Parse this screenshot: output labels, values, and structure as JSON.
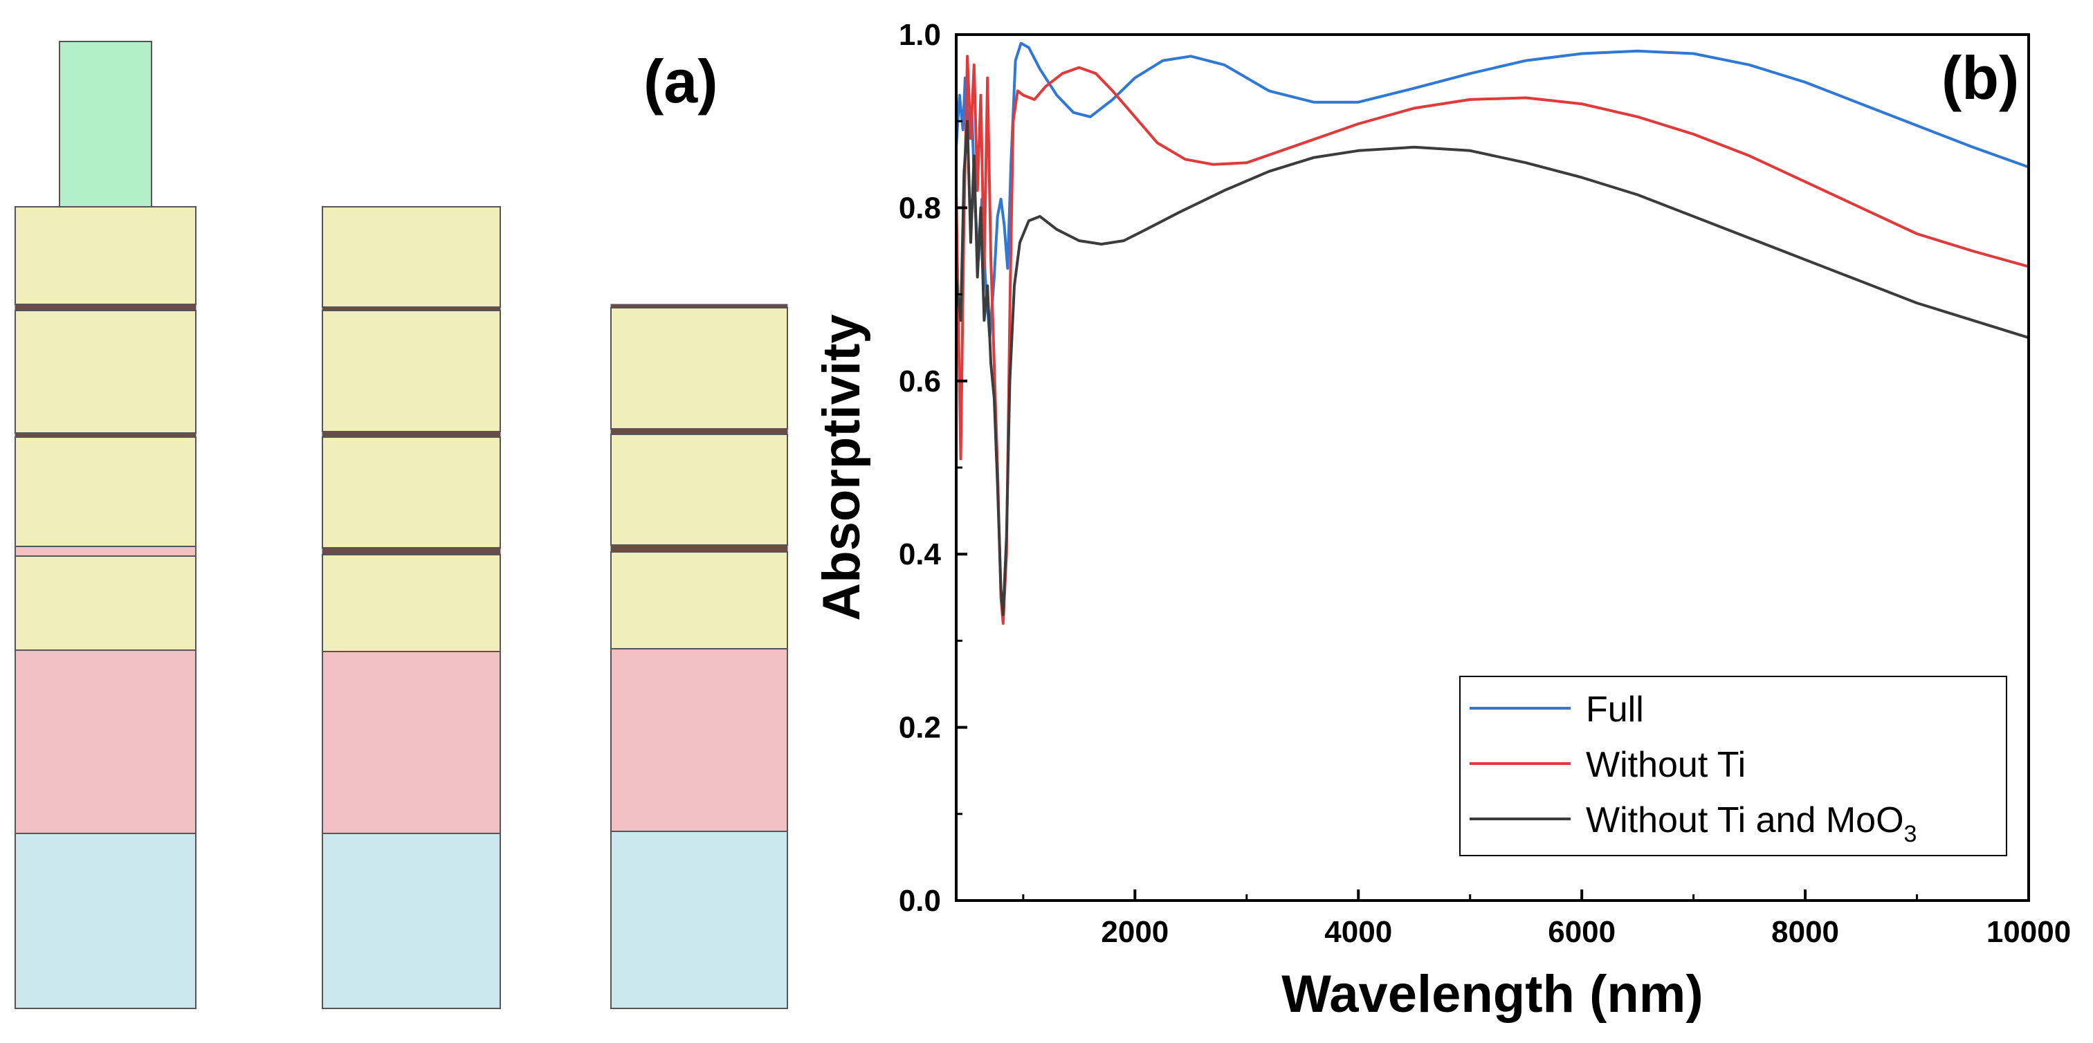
{
  "panel_a": {
    "label": "(a)",
    "colors": {
      "top": "#b3f0c9",
      "yellow": "#f0eebb",
      "pink": "#f0c0c2",
      "blue": "#cde7ef",
      "thin_dark": "#6b4a4a",
      "thin_pink": "#f0c0c2",
      "edge": "#555555"
    }
  },
  "chart_data": {
    "type": "line",
    "panel_label": "(b)",
    "title": "",
    "xlabel": "Wavelength (nm)",
    "ylabel": "Absorptivity",
    "xlim": [
      400,
      10000
    ],
    "ylim": [
      0.0,
      1.0
    ],
    "xticks": [
      2000,
      4000,
      6000,
      8000,
      10000
    ],
    "yticks": [
      0.0,
      0.2,
      0.4,
      0.6,
      0.8,
      1.0
    ],
    "ytick_labels": [
      "0.0",
      "0.2",
      "0.4",
      "0.6",
      "0.8",
      "1.0"
    ],
    "legend_position": "bottom-right",
    "grid": false,
    "series": [
      {
        "name": "Full",
        "color": "#2f78d6",
        "points": [
          [
            400,
            0.87
          ],
          [
            430,
            0.93
          ],
          [
            460,
            0.89
          ],
          [
            480,
            0.95
          ],
          [
            510,
            0.88
          ],
          [
            540,
            0.91
          ],
          [
            570,
            0.8
          ],
          [
            600,
            0.74
          ],
          [
            630,
            0.81
          ],
          [
            660,
            0.72
          ],
          [
            700,
            0.65
          ],
          [
            740,
            0.72
          ],
          [
            770,
            0.79
          ],
          [
            800,
            0.81
          ],
          [
            830,
            0.78
          ],
          [
            860,
            0.73
          ],
          [
            890,
            0.85
          ],
          [
            930,
            0.97
          ],
          [
            980,
            0.99
          ],
          [
            1050,
            0.985
          ],
          [
            1150,
            0.96
          ],
          [
            1300,
            0.93
          ],
          [
            1450,
            0.91
          ],
          [
            1600,
            0.905
          ],
          [
            1800,
            0.925
          ],
          [
            2000,
            0.95
          ],
          [
            2250,
            0.97
          ],
          [
            2500,
            0.975
          ],
          [
            2800,
            0.965
          ],
          [
            3200,
            0.935
          ],
          [
            3600,
            0.922
          ],
          [
            4000,
            0.922
          ],
          [
            4500,
            0.938
          ],
          [
            5000,
            0.955
          ],
          [
            5500,
            0.97
          ],
          [
            6000,
            0.978
          ],
          [
            6500,
            0.981
          ],
          [
            7000,
            0.978
          ],
          [
            7500,
            0.965
          ],
          [
            8000,
            0.945
          ],
          [
            8500,
            0.92
          ],
          [
            9000,
            0.895
          ],
          [
            9500,
            0.87
          ],
          [
            10000,
            0.847
          ]
        ]
      },
      {
        "name": "Without Ti",
        "color": "#e03a3a",
        "points": [
          [
            400,
            0.82
          ],
          [
            440,
            0.51
          ],
          [
            470,
            0.79
          ],
          [
            500,
            0.975
          ],
          [
            530,
            0.88
          ],
          [
            560,
            0.965
          ],
          [
            590,
            0.82
          ],
          [
            620,
            0.93
          ],
          [
            650,
            0.73
          ],
          [
            680,
            0.95
          ],
          [
            710,
            0.74
          ],
          [
            740,
            0.62
          ],
          [
            770,
            0.5
          ],
          [
            800,
            0.35
          ],
          [
            820,
            0.32
          ],
          [
            850,
            0.4
          ],
          [
            880,
            0.68
          ],
          [
            910,
            0.9
          ],
          [
            950,
            0.935
          ],
          [
            1000,
            0.93
          ],
          [
            1100,
            0.925
          ],
          [
            1200,
            0.94
          ],
          [
            1350,
            0.955
          ],
          [
            1500,
            0.962
          ],
          [
            1650,
            0.955
          ],
          [
            1800,
            0.935
          ],
          [
            2000,
            0.905
          ],
          [
            2200,
            0.875
          ],
          [
            2450,
            0.856
          ],
          [
            2700,
            0.85
          ],
          [
            3000,
            0.852
          ],
          [
            3400,
            0.87
          ],
          [
            4000,
            0.897
          ],
          [
            4500,
            0.915
          ],
          [
            5000,
            0.925
          ],
          [
            5500,
            0.927
          ],
          [
            6000,
            0.92
          ],
          [
            6500,
            0.905
          ],
          [
            7000,
            0.885
          ],
          [
            7500,
            0.86
          ],
          [
            8000,
            0.83
          ],
          [
            8500,
            0.8
          ],
          [
            9000,
            0.77
          ],
          [
            9500,
            0.75
          ],
          [
            10000,
            0.732
          ]
        ]
      },
      {
        "name": "Without Ti and MoO3",
        "color": "#3c3c3c",
        "points": [
          [
            400,
            0.72
          ],
          [
            440,
            0.67
          ],
          [
            470,
            0.84
          ],
          [
            500,
            0.9
          ],
          [
            530,
            0.76
          ],
          [
            560,
            0.86
          ],
          [
            590,
            0.72
          ],
          [
            620,
            0.8
          ],
          [
            650,
            0.67
          ],
          [
            680,
            0.71
          ],
          [
            710,
            0.62
          ],
          [
            740,
            0.58
          ],
          [
            770,
            0.48
          ],
          [
            800,
            0.36
          ],
          [
            820,
            0.33
          ],
          [
            850,
            0.42
          ],
          [
            880,
            0.6
          ],
          [
            920,
            0.71
          ],
          [
            970,
            0.76
          ],
          [
            1050,
            0.785
          ],
          [
            1150,
            0.79
          ],
          [
            1300,
            0.775
          ],
          [
            1500,
            0.762
          ],
          [
            1700,
            0.758
          ],
          [
            1900,
            0.762
          ],
          [
            2100,
            0.775
          ],
          [
            2400,
            0.795
          ],
          [
            2800,
            0.82
          ],
          [
            3200,
            0.842
          ],
          [
            3600,
            0.858
          ],
          [
            4000,
            0.866
          ],
          [
            4500,
            0.87
          ],
          [
            5000,
            0.866
          ],
          [
            5500,
            0.852
          ],
          [
            6000,
            0.835
          ],
          [
            6500,
            0.815
          ],
          [
            7000,
            0.79
          ],
          [
            7500,
            0.765
          ],
          [
            8000,
            0.74
          ],
          [
            8500,
            0.715
          ],
          [
            9000,
            0.69
          ],
          [
            9500,
            0.67
          ],
          [
            10000,
            0.65
          ]
        ]
      }
    ],
    "legend": [
      {
        "main": "Full",
        "sub": "",
        "tail": ""
      },
      {
        "main": "Without Ti",
        "sub": "",
        "tail": ""
      },
      {
        "main": "Without Ti and MoO",
        "sub": "3",
        "tail": ""
      }
    ]
  }
}
